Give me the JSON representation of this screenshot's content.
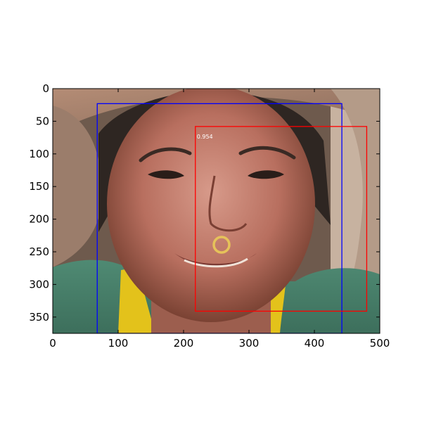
{
  "image": {
    "description_free": true
  },
  "axes": {
    "x_ticks": [
      "0",
      "100",
      "200",
      "300",
      "400",
      "500"
    ],
    "y_ticks": [
      "0",
      "50",
      "100",
      "150",
      "200",
      "250",
      "300",
      "350"
    ]
  },
  "chart_data": {
    "type": "scatter",
    "xlim": [
      0,
      500
    ],
    "ylim": [
      375,
      0
    ],
    "x_tick_values": [
      0,
      100,
      200,
      300,
      400,
      500
    ],
    "y_tick_values": [
      0,
      50,
      100,
      150,
      200,
      250,
      300,
      350
    ],
    "grid": false,
    "boxes": [
      {
        "color": "#0000ff",
        "x0": 68,
        "y0": 23,
        "x1": 442,
        "y1": 375,
        "label": ""
      },
      {
        "color": "#ff0000",
        "x0": 218,
        "y0": 58,
        "x1": 480,
        "y1": 341,
        "label": "0.954"
      }
    ]
  }
}
